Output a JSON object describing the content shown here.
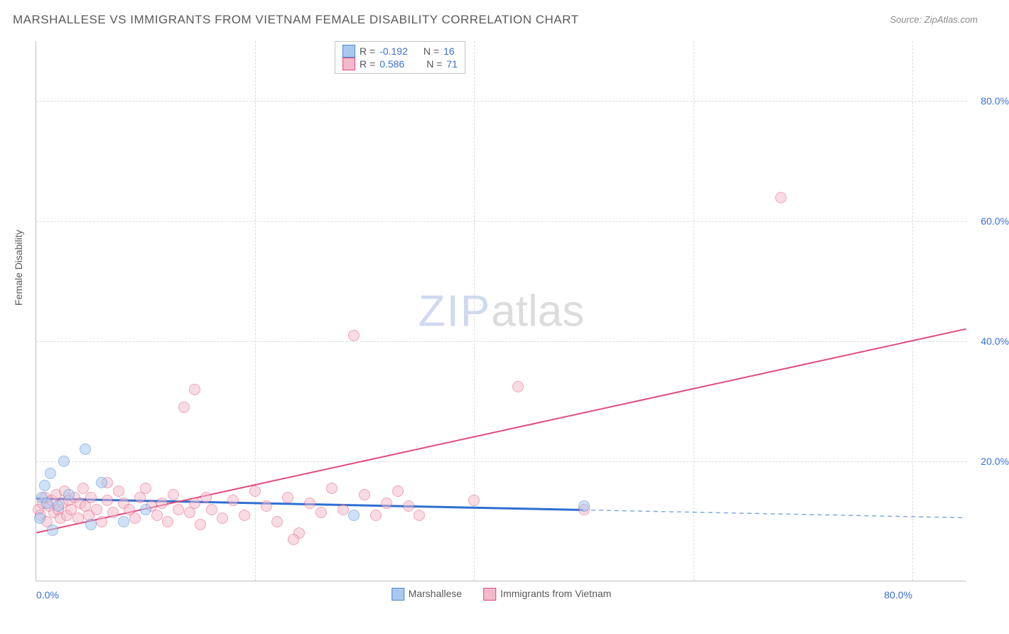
{
  "title": "MARSHALLESE VS IMMIGRANTS FROM VIETNAM FEMALE DISABILITY CORRELATION CHART",
  "source": "Source: ZipAtlas.com",
  "ylabel": "Female Disability",
  "watermark_zip": "ZIP",
  "watermark_atlas": "atlas",
  "chart": {
    "type": "scatter",
    "xlim": [
      0,
      85
    ],
    "ylim": [
      0,
      90
    ],
    "xtick_labels": [
      "0.0%",
      "80.0%"
    ],
    "xtick_positions": [
      0,
      80
    ],
    "ytick_labels": [
      "20.0%",
      "40.0%",
      "60.0%",
      "80.0%"
    ],
    "ytick_positions": [
      20,
      40,
      60,
      80
    ],
    "grid_color": "#dcdcdc",
    "axis_color": "#c0c0c0",
    "background_color": "#ffffff"
  },
  "series": [
    {
      "name": "Marshallese",
      "fill": "#a8c9ef",
      "stroke": "#4a8ad4",
      "fill_opacity": 0.55,
      "r_value": "-0.192",
      "n_value": "16",
      "line": {
        "color": "#2e6fd1",
        "width": 3,
        "x1": 0,
        "y1": 13.7,
        "x2": 50,
        "y2": 11.8,
        "dash_from": 50,
        "dash_x2": 85,
        "dash_y2": 10.5
      },
      "marker_radius": 8,
      "points": [
        [
          0.3,
          10.5
        ],
        [
          0.5,
          14.0
        ],
        [
          0.8,
          16.0
        ],
        [
          1.0,
          13.0
        ],
        [
          1.3,
          18.0
        ],
        [
          1.5,
          8.5
        ],
        [
          2.0,
          12.5
        ],
        [
          2.5,
          20.0
        ],
        [
          3.0,
          14.5
        ],
        [
          4.5,
          22.0
        ],
        [
          5.0,
          9.5
        ],
        [
          6.0,
          16.5
        ],
        [
          8.0,
          10.0
        ],
        [
          10.0,
          12.0
        ],
        [
          29.0,
          11.0
        ],
        [
          50.0,
          12.5
        ]
      ]
    },
    {
      "name": "Immigrants from Vietnam",
      "fill": "#f4b9ca",
      "stroke": "#e04d7b",
      "fill_opacity": 0.5,
      "r_value": "0.586",
      "n_value": "71",
      "line": {
        "color": "#e04d7b",
        "width": 2,
        "x1": 0,
        "y1": 8.0,
        "x2": 85,
        "y2": 42.0
      },
      "marker_radius": 8,
      "points": [
        [
          0.2,
          12.0
        ],
        [
          0.4,
          11.0
        ],
        [
          0.6,
          13.0
        ],
        [
          0.8,
          14.0
        ],
        [
          1.0,
          10.0
        ],
        [
          1.2,
          12.5
        ],
        [
          1.4,
          13.5
        ],
        [
          1.6,
          11.5
        ],
        [
          1.8,
          14.5
        ],
        [
          2.0,
          12.0
        ],
        [
          2.2,
          10.5
        ],
        [
          2.4,
          13.0
        ],
        [
          2.6,
          15.0
        ],
        [
          2.8,
          11.0
        ],
        [
          3.0,
          13.5
        ],
        [
          3.2,
          12.0
        ],
        [
          3.5,
          14.0
        ],
        [
          3.8,
          10.5
        ],
        [
          4.0,
          13.0
        ],
        [
          4.3,
          15.5
        ],
        [
          4.5,
          12.5
        ],
        [
          4.8,
          11.0
        ],
        [
          5.0,
          14.0
        ],
        [
          5.5,
          12.0
        ],
        [
          6.0,
          10.0
        ],
        [
          6.5,
          13.5
        ],
        [
          7.0,
          11.5
        ],
        [
          7.5,
          15.0
        ],
        [
          8.0,
          13.0
        ],
        [
          8.5,
          12.0
        ],
        [
          9.0,
          10.5
        ],
        [
          9.5,
          14.0
        ],
        [
          10.0,
          15.5
        ],
        [
          10.5,
          12.5
        ],
        [
          11.0,
          11.0
        ],
        [
          11.5,
          13.0
        ],
        [
          12.0,
          10.0
        ],
        [
          12.5,
          14.5
        ],
        [
          13.0,
          12.0
        ],
        [
          13.5,
          29.0
        ],
        [
          14.0,
          11.5
        ],
        [
          14.5,
          13.0
        ],
        [
          15.0,
          9.5
        ],
        [
          15.5,
          14.0
        ],
        [
          16.0,
          12.0
        ],
        [
          17.0,
          10.5
        ],
        [
          18.0,
          13.5
        ],
        [
          19.0,
          11.0
        ],
        [
          20.0,
          15.0
        ],
        [
          21.0,
          12.5
        ],
        [
          22.0,
          10.0
        ],
        [
          23.0,
          14.0
        ],
        [
          24.0,
          8.0
        ],
        [
          25.0,
          13.0
        ],
        [
          26.0,
          11.5
        ],
        [
          27.0,
          15.5
        ],
        [
          28.0,
          12.0
        ],
        [
          29.0,
          41.0
        ],
        [
          30.0,
          14.5
        ],
        [
          31.0,
          11.0
        ],
        [
          32.0,
          13.0
        ],
        [
          33.0,
          15.0
        ],
        [
          34.0,
          12.5
        ],
        [
          35.0,
          11.0
        ],
        [
          40.0,
          13.5
        ],
        [
          44.0,
          32.5
        ],
        [
          50.0,
          12.0
        ],
        [
          68.0,
          64.0
        ],
        [
          14.5,
          32.0
        ],
        [
          23.5,
          7.0
        ],
        [
          6.5,
          16.5
        ]
      ]
    }
  ],
  "legend_top": {
    "r_label": "R =",
    "n_label": "N ="
  },
  "legend_bottom": [
    "Marshallese",
    "Immigrants from Vietnam"
  ]
}
